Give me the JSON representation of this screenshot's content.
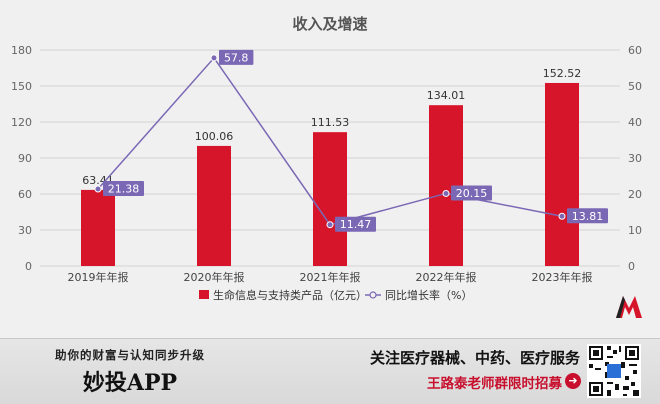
{
  "chart_data": {
    "type": "bar+line",
    "title": "收入及增速",
    "categories": [
      "2019年年报",
      "2020年年报",
      "2021年年报",
      "2022年年报",
      "2023年年报"
    ],
    "series": [
      {
        "name": "生命信息与支持类产品（亿元）",
        "type": "bar",
        "axis": "left",
        "color": "#d7152a",
        "values": [
          63.41,
          100.06,
          111.53,
          134.01,
          152.52
        ],
        "labels": [
          "63.41",
          "100.06",
          "111.53",
          "134.01",
          "152.52"
        ]
      },
      {
        "name": "同比增长率（%）",
        "type": "line",
        "axis": "right",
        "color": "#7b68b5",
        "values": [
          21.38,
          57.8,
          11.47,
          20.15,
          13.81
        ],
        "labels": [
          "21.38",
          "57.8",
          "11.47",
          "20.15",
          "13.81"
        ]
      }
    ],
    "y_left": {
      "min": 0,
      "max": 180,
      "ticks": [
        "0",
        "30",
        "60",
        "90",
        "120",
        "150",
        "180"
      ]
    },
    "y_right": {
      "min": 0,
      "max": 60,
      "ticks": [
        "0",
        "10",
        "20",
        "30",
        "40",
        "50",
        "60"
      ]
    },
    "grid": true,
    "legend_position": "bottom"
  },
  "banner": {
    "tagline": "助你的财富与认知同步升级",
    "app_name": "妙投APP",
    "headline": "关注医疗器械、中药、医疗服务",
    "subline": "王路泰老师群限时招募",
    "arrow_icon": "arrow-right-icon"
  },
  "colors": {
    "bar": "#d7152a",
    "line": "#7b68b5",
    "accent": "#c8102e",
    "background": "#f0f0f0"
  }
}
